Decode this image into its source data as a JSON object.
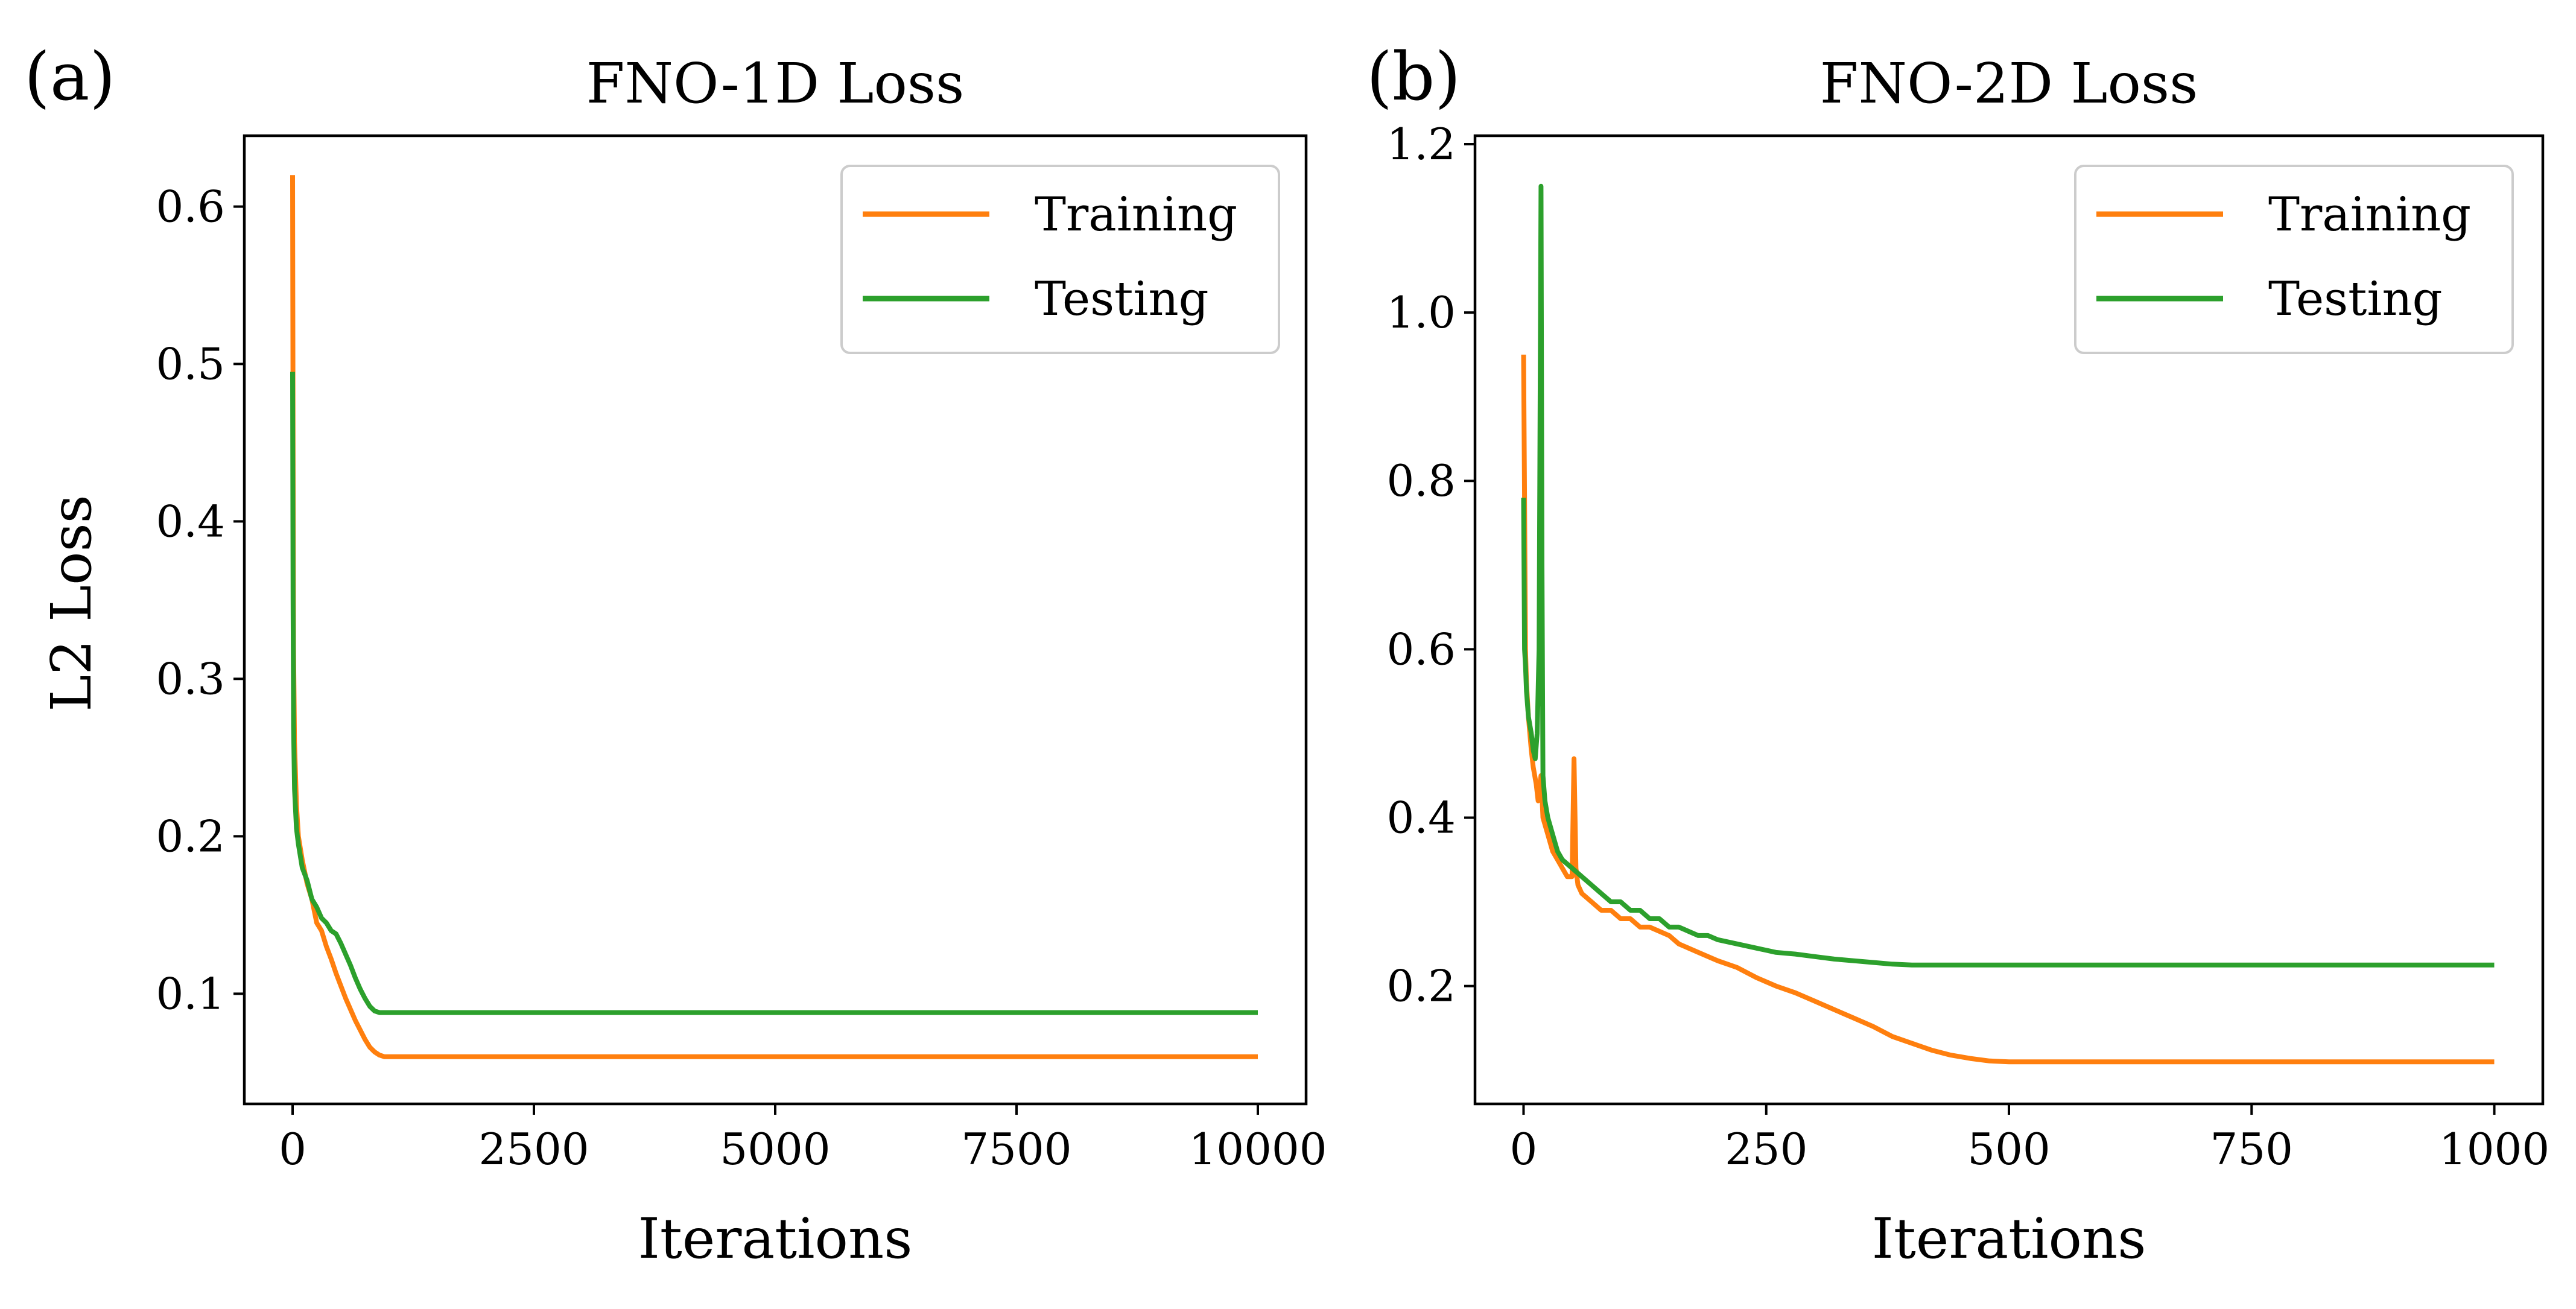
{
  "colors": {
    "training": "#ff7f0e",
    "testing": "#2ca02c"
  },
  "chart_data": [
    {
      "type": "line",
      "panel_label": "(a)",
      "title": "FNO-1D Loss",
      "xlabel": "Iterations",
      "ylabel": "L2 Loss",
      "xlim": [
        -500,
        10500
      ],
      "ylim": [
        0.03,
        0.645
      ],
      "xticks": [
        0,
        2500,
        5000,
        7500,
        10000
      ],
      "xtick_labels": [
        "0",
        "2500",
        "5000",
        "7500",
        "10000"
      ],
      "yticks": [
        0.1,
        0.2,
        0.3,
        0.4,
        0.5,
        0.6
      ],
      "ytick_labels": [
        "0.1",
        "0.2",
        "0.3",
        "0.4",
        "0.5",
        "0.6"
      ],
      "grid": false,
      "legend": "top-right",
      "series": [
        {
          "name": "Training",
          "color": "#ff7f0e",
          "x": [
            0,
            5,
            10,
            20,
            40,
            60,
            100,
            150,
            200,
            250,
            300,
            350,
            400,
            450,
            500,
            550,
            600,
            650,
            700,
            750,
            800,
            850,
            900,
            950,
            1000,
            2000,
            4000,
            6000,
            8000,
            10000
          ],
          "y": [
            0.62,
            0.45,
            0.32,
            0.26,
            0.22,
            0.2,
            0.185,
            0.17,
            0.16,
            0.145,
            0.14,
            0.13,
            0.122,
            0.113,
            0.105,
            0.097,
            0.09,
            0.083,
            0.077,
            0.071,
            0.066,
            0.063,
            0.061,
            0.06,
            0.06,
            0.06,
            0.06,
            0.06,
            0.06,
            0.06
          ]
        },
        {
          "name": "Testing",
          "color": "#2ca02c",
          "x": [
            0,
            5,
            10,
            20,
            40,
            60,
            100,
            150,
            200,
            250,
            300,
            350,
            400,
            450,
            500,
            550,
            600,
            650,
            700,
            750,
            800,
            850,
            900,
            950,
            1000,
            2000,
            4000,
            6000,
            8000,
            10000
          ],
          "y": [
            0.495,
            0.35,
            0.27,
            0.23,
            0.205,
            0.195,
            0.18,
            0.172,
            0.16,
            0.155,
            0.148,
            0.145,
            0.14,
            0.138,
            0.132,
            0.125,
            0.118,
            0.11,
            0.103,
            0.097,
            0.092,
            0.089,
            0.088,
            0.088,
            0.088,
            0.088,
            0.088,
            0.088,
            0.088,
            0.088
          ]
        }
      ]
    },
    {
      "type": "line",
      "panel_label": "(b)",
      "title": "FNO-2D Loss",
      "xlabel": "Iterations",
      "ylabel": "",
      "xlim": [
        -50,
        1050
      ],
      "ylim": [
        0.06,
        1.21
      ],
      "xticks": [
        0,
        250,
        500,
        750,
        1000
      ],
      "xtick_labels": [
        "0",
        "250",
        "500",
        "750",
        "1000"
      ],
      "yticks": [
        0.2,
        0.4,
        0.6,
        0.8,
        1.0,
        1.2
      ],
      "ytick_labels": [
        "0.2",
        "0.4",
        "0.6",
        "0.8",
        "1.0",
        "1.2"
      ],
      "grid": false,
      "legend": "top-right",
      "series": [
        {
          "name": "Training",
          "color": "#ff7f0e",
          "x": [
            0,
            1,
            2,
            3,
            5,
            8,
            10,
            13,
            15,
            18,
            20,
            25,
            30,
            35,
            40,
            45,
            50,
            52,
            54,
            56,
            60,
            70,
            80,
            90,
            100,
            110,
            120,
            130,
            140,
            150,
            160,
            170,
            180,
            200,
            220,
            240,
            260,
            280,
            300,
            320,
            340,
            360,
            380,
            400,
            420,
            440,
            460,
            480,
            500,
            550,
            600,
            700,
            800,
            900,
            1000
          ],
          "y": [
            0.95,
            0.78,
            0.6,
            0.56,
            0.52,
            0.48,
            0.46,
            0.44,
            0.42,
            0.45,
            0.4,
            0.38,
            0.36,
            0.35,
            0.34,
            0.33,
            0.33,
            0.47,
            0.34,
            0.32,
            0.31,
            0.3,
            0.29,
            0.29,
            0.28,
            0.28,
            0.27,
            0.27,
            0.265,
            0.26,
            0.25,
            0.245,
            0.24,
            0.23,
            0.222,
            0.21,
            0.2,
            0.192,
            0.182,
            0.172,
            0.162,
            0.152,
            0.14,
            0.132,
            0.124,
            0.118,
            0.114,
            0.111,
            0.11,
            0.11,
            0.11,
            0.11,
            0.11,
            0.11,
            0.11
          ]
        },
        {
          "name": "Testing",
          "color": "#2ca02c",
          "x": [
            0,
            1,
            2,
            3,
            5,
            8,
            10,
            12,
            14,
            16,
            18,
            19,
            20,
            22,
            25,
            30,
            35,
            40,
            50,
            60,
            70,
            80,
            90,
            100,
            110,
            120,
            130,
            140,
            150,
            160,
            170,
            180,
            190,
            200,
            220,
            240,
            260,
            280,
            300,
            320,
            340,
            360,
            380,
            400,
            420,
            450,
            500,
            600,
            700,
            800,
            900,
            1000
          ],
          "y": [
            0.78,
            0.6,
            0.58,
            0.55,
            0.52,
            0.5,
            0.48,
            0.47,
            0.5,
            0.6,
            1.15,
            0.7,
            0.45,
            0.42,
            0.4,
            0.38,
            0.36,
            0.35,
            0.34,
            0.33,
            0.32,
            0.31,
            0.3,
            0.3,
            0.29,
            0.29,
            0.28,
            0.28,
            0.27,
            0.27,
            0.265,
            0.26,
            0.26,
            0.255,
            0.25,
            0.245,
            0.24,
            0.238,
            0.235,
            0.232,
            0.23,
            0.228,
            0.226,
            0.225,
            0.225,
            0.225,
            0.225,
            0.225,
            0.225,
            0.225,
            0.225,
            0.225
          ]
        }
      ]
    }
  ]
}
